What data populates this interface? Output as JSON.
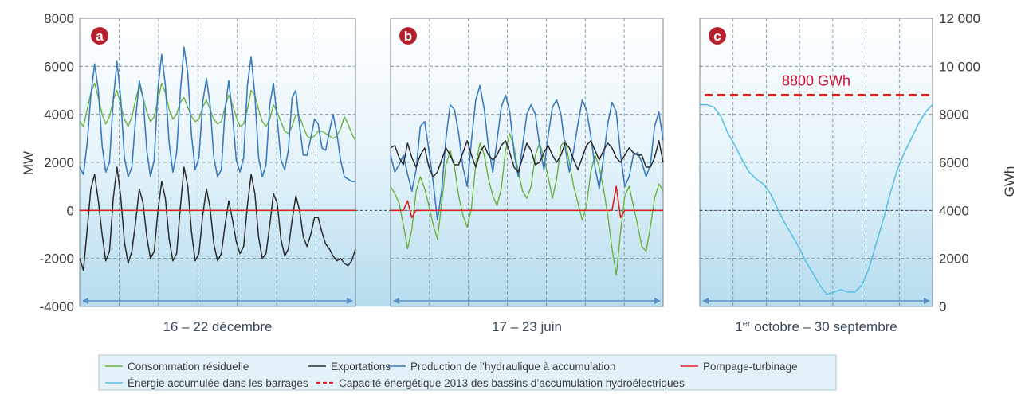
{
  "chart_data": {
    "type": "line",
    "y_left": {
      "label": "MW",
      "range": [
        -4000,
        8000
      ],
      "ticks": [
        "8000",
        "6000",
        "4000",
        "2000",
        "0",
        "-2000",
        "-4000"
      ]
    },
    "y_right": {
      "label": "GWh",
      "range": [
        0,
        12000
      ],
      "ticks": [
        "12 000",
        "10 000",
        "8000",
        "6000",
        "4000",
        "2000",
        "0"
      ]
    },
    "panels": [
      {
        "id": "a",
        "badge": "a",
        "range_label": "16 – 22 décembre",
        "series": {
          "consommation": [
            3700,
            3500,
            4200,
            4900,
            5300,
            4700,
            4000,
            3600,
            3900,
            4600,
            5000,
            4400,
            3800,
            3500,
            3900,
            4600,
            5200,
            4700,
            4100,
            3700,
            3900,
            4600,
            5300,
            4900,
            4200,
            3800,
            4000,
            4500,
            4700,
            4300,
            3900,
            3700,
            3800,
            4300,
            4600,
            4200,
            3800,
            3600,
            3700,
            4300,
            4800,
            4400,
            3900,
            3500,
            3600,
            4200,
            5000,
            4800,
            4200,
            3700,
            3500,
            3800,
            4400,
            4100,
            3700,
            3300,
            3200,
            3500,
            4000,
            3900,
            3500,
            3100,
            3000,
            3100,
            3300,
            3300,
            3200,
            3100,
            3000,
            3100,
            3400,
            3900,
            3600,
            3200,
            2900
          ],
          "production": [
            1800,
            1500,
            2800,
            4800,
            6100,
            5000,
            2700,
            1600,
            2000,
            4600,
            6200,
            4700,
            2200,
            1400,
            1800,
            3800,
            5400,
            4700,
            2500,
            1400,
            2100,
            5100,
            6500,
            5200,
            2800,
            1600,
            2400,
            4900,
            6800,
            5700,
            3100,
            1700,
            2200,
            4500,
            5500,
            4400,
            2200,
            1400,
            1700,
            4200,
            5400,
            4000,
            2100,
            1600,
            2200,
            5200,
            6400,
            4800,
            2200,
            1400,
            1900,
            4400,
            5300,
            3800,
            2100,
            1700,
            2500,
            4700,
            5000,
            3500,
            2300,
            2300,
            3000,
            3800,
            3600,
            2600,
            2500,
            3300,
            4000,
            3200,
            2100,
            1400,
            1300,
            1200,
            1200
          ],
          "exportations": [
            -2000,
            -2500,
            -800,
            900,
            1500,
            400,
            -1000,
            -2100,
            -1700,
            500,
            1800,
            600,
            -1300,
            -2200,
            -1700,
            -500,
            900,
            300,
            -1100,
            -2000,
            -1700,
            0,
            1200,
            500,
            -1200,
            -2100,
            -1800,
            100,
            1800,
            1000,
            -900,
            -2100,
            -1800,
            -200,
            900,
            100,
            -1400,
            -2100,
            -1800,
            -600,
            400,
            -400,
            -1300,
            -1800,
            -1500,
            200,
            1500,
            700,
            -1100,
            -2000,
            -1800,
            -600,
            700,
            300,
            -1200,
            -1900,
            -1600,
            -400,
            600,
            0,
            -1100,
            -1500,
            -1000,
            -300,
            -300,
            -900,
            -1400,
            -1600,
            -1900,
            -2100,
            -2000,
            -2200,
            -2300,
            -2100,
            -1600
          ],
          "pompage": [
            0,
            0,
            0,
            0,
            0,
            0,
            0,
            0,
            0,
            0,
            0,
            0,
            0,
            0,
            0,
            0,
            0,
            0,
            0,
            0,
            0,
            0,
            0,
            0,
            0,
            0,
            0,
            0,
            0,
            0,
            0,
            0,
            0,
            0,
            0,
            0,
            0,
            0,
            0,
            0,
            0,
            0,
            0,
            0,
            0,
            0,
            0,
            0,
            0,
            0,
            0,
            0,
            0,
            0,
            0,
            0,
            0,
            0,
            0,
            0,
            0,
            0,
            0,
            0,
            0,
            0,
            0,
            0,
            0,
            0,
            0,
            0,
            0,
            0,
            0
          ]
        }
      },
      {
        "id": "b",
        "badge": "b",
        "range_label": "17 – 23 juin",
        "series": {
          "consommation": [
            1000,
            700,
            300,
            -600,
            -1600,
            -800,
            800,
            1400,
            900,
            200,
            -600,
            -1200,
            300,
            1900,
            2500,
            1800,
            600,
            -200,
            -700,
            100,
            1900,
            2800,
            2300,
            1300,
            600,
            200,
            900,
            2500,
            3200,
            2600,
            1600,
            800,
            500,
            1000,
            2300,
            2800,
            2200,
            1400,
            500,
            1300,
            2700,
            2900,
            2000,
            1000,
            300,
            -400,
            200,
            1600,
            2300,
            1800,
            900,
            -200,
            -1600,
            -2700,
            -900,
            600,
            1000,
            200,
            -600,
            -1500,
            -1700,
            -700,
            500,
            1100,
            800
          ],
          "production": [
            2300,
            1600,
            1900,
            2300,
            1500,
            800,
            1700,
            3500,
            3700,
            2500,
            1200,
            -400,
            800,
            3000,
            4400,
            4200,
            3200,
            1800,
            1000,
            2900,
            4600,
            5200,
            4200,
            2600,
            1600,
            2900,
            4300,
            4800,
            4100,
            2400,
            1400,
            2700,
            4000,
            4400,
            4000,
            2700,
            1700,
            3100,
            4300,
            4600,
            4000,
            2600,
            1600,
            2500,
            3600,
            4600,
            4200,
            3100,
            1800,
            900,
            2200,
            3600,
            4500,
            4100,
            2300,
            1000,
            1400,
            2300,
            2400,
            2000,
            1400,
            1900,
            3500,
            4100,
            2900
          ],
          "exportations": [
            2600,
            2700,
            2200,
            1900,
            2800,
            2200,
            1800,
            2300,
            2600,
            1800,
            1400,
            1600,
            2100,
            2600,
            2300,
            1900,
            1900,
            2400,
            2900,
            2300,
            1800,
            2400,
            2700,
            2300,
            2100,
            2300,
            2700,
            2900,
            2400,
            1800,
            1600,
            2200,
            2800,
            2500,
            1900,
            2000,
            2400,
            2700,
            2300,
            2000,
            2300,
            2800,
            2600,
            2100,
            1700,
            2200,
            2700,
            2900,
            2500,
            2100,
            2500,
            2800,
            2600,
            2200,
            2000,
            2300,
            2600,
            2400,
            2300,
            2300,
            1800,
            1800,
            2200,
            2900,
            2000
          ],
          "pompage": [
            0,
            0,
            0,
            0,
            400,
            -300,
            0,
            0,
            0,
            0,
            0,
            0,
            0,
            0,
            0,
            0,
            0,
            0,
            0,
            0,
            0,
            0,
            0,
            0,
            0,
            0,
            0,
            0,
            0,
            0,
            0,
            0,
            0,
            0,
            0,
            0,
            0,
            0,
            0,
            0,
            0,
            0,
            0,
            0,
            0,
            0,
            0,
            0,
            0,
            0,
            0,
            0,
            0,
            1000,
            -300,
            0,
            0,
            0,
            0,
            0,
            0,
            0,
            0,
            0,
            0
          ]
        }
      },
      {
        "id": "c",
        "badge": "c",
        "range_label": "1er octobre – 30 septembre",
        "range_label_parts": [
          "1",
          "er",
          " octobre – 30 septembre"
        ],
        "capacity_label": "8800 GWh",
        "capacity_value": 8800,
        "energie": [
          8400,
          8400,
          8300,
          7900,
          7200,
          6700,
          6100,
          5600,
          5300,
          5100,
          4700,
          4100,
          3500,
          3000,
          2500,
          1900,
          1400,
          900,
          500,
          600,
          700,
          600,
          600,
          900,
          1600,
          2600,
          3600,
          4700,
          5700,
          6400,
          7000,
          7600,
          8100,
          8400
        ]
      }
    ],
    "legend": [
      {
        "label": "Consommation résiduelle",
        "color": "#6ab23e",
        "dash": false
      },
      {
        "label": "Exportations",
        "color": "#2b2b2b",
        "dash": false
      },
      {
        "label": "Production de l’hydraulique à accumulation",
        "color": "#3b7bbf",
        "dash": false
      },
      {
        "label": "Pompage-turbinage",
        "color": "#e02020",
        "dash": false
      },
      {
        "label": "Énergie accumulée dans les barrages",
        "color": "#5bbfe6",
        "dash": false
      },
      {
        "label": "Capacité énergétique 2013 des bassins d’accumulation hydroélectriques",
        "color": "#e02020",
        "dash": true
      }
    ]
  },
  "colors": {
    "consommation": "#6ab23e",
    "exportations": "#2b2b2b",
    "production": "#3b7bbf",
    "pompage": "#e02020",
    "energie": "#5bbfe6",
    "capacity": "#e02020",
    "badge": "#b5202b",
    "arrow": "#5a8fc9"
  }
}
